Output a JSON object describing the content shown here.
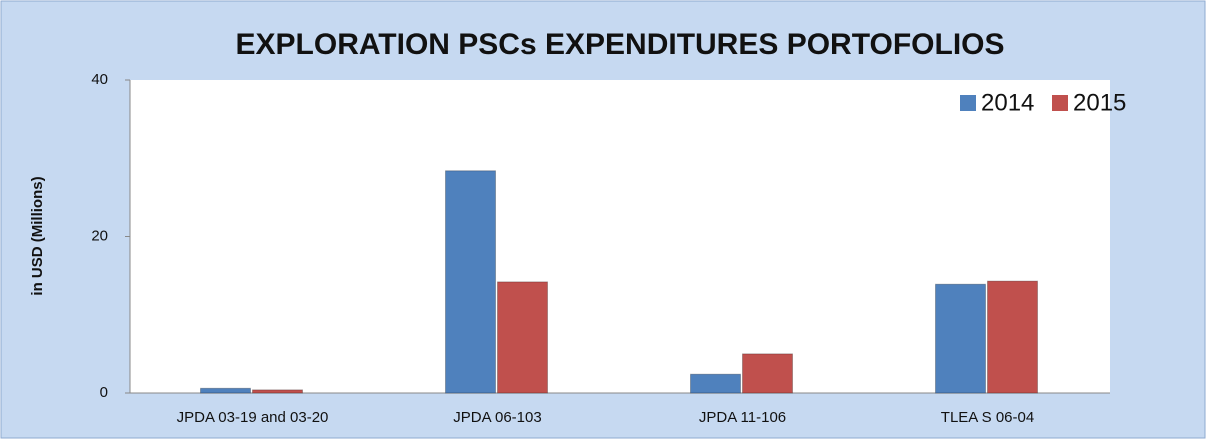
{
  "chart_data": {
    "type": "bar",
    "title": "EXPLORATION PSCs EXPENDITURES PORTOFOLIOS",
    "y_label": "in USD (Millions)",
    "categories": [
      "JPDA 03-19 and 03-20",
      "JPDA 06-103",
      "JPDA 11-106",
      "TLEA S 06-04"
    ],
    "series": [
      {
        "name": "2014",
        "color": "#4f81bd",
        "values": [
          0.6,
          28.4,
          2.4,
          13.9
        ]
      },
      {
        "name": "2015",
        "color": "#c0504d",
        "values": [
          0.4,
          14.2,
          5.0,
          14.3
        ]
      }
    ],
    "ylim": [
      0,
      40
    ],
    "yticks": [
      0,
      20,
      40
    ],
    "grid": false,
    "legend": "upper right"
  }
}
